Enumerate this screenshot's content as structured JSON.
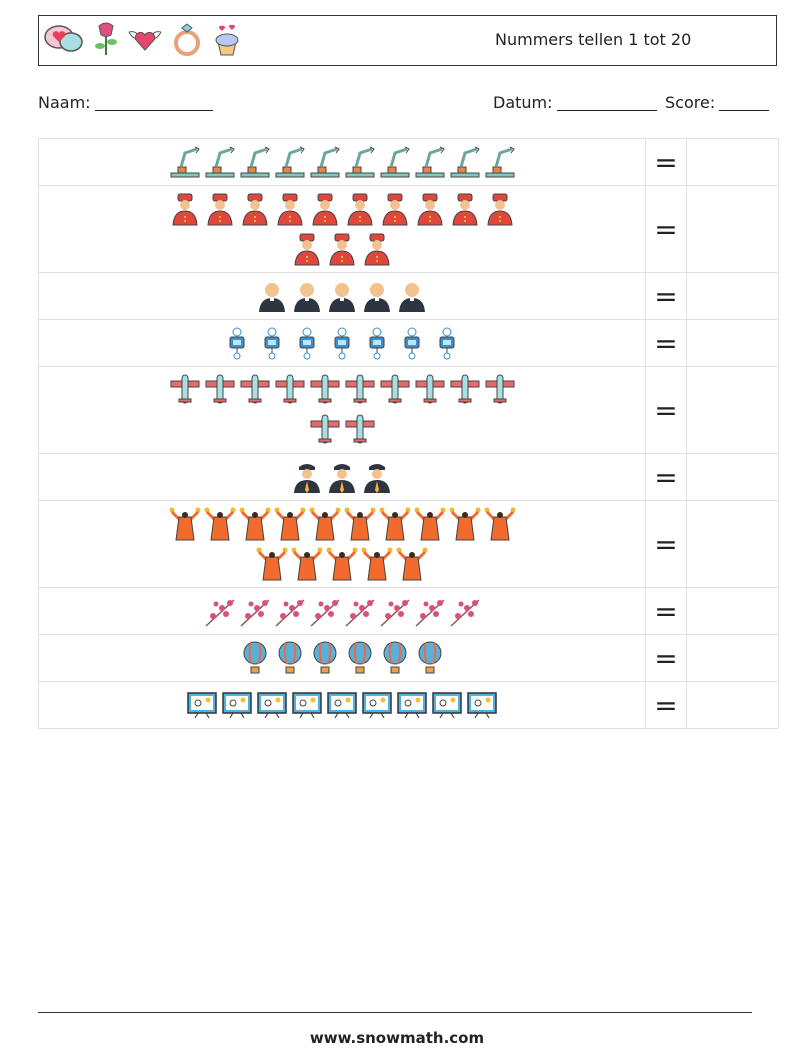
{
  "header": {
    "title": "Nummers tellen 1 tot 20",
    "icons": [
      "speech-hearts-icon",
      "rose-icon",
      "winged-heart-icon",
      "ring-icon",
      "cupcake-icon"
    ]
  },
  "meta": {
    "name_label": "Naam:",
    "date_label": "Datum:",
    "score_label": "Score:"
  },
  "rows": [
    {
      "icon": "robot-arm-icon",
      "count": 10,
      "color": "#6aa6a0"
    },
    {
      "icon": "bellhop-icon",
      "count": 13,
      "color": "#e0473c"
    },
    {
      "icon": "priest-icon",
      "count": 5,
      "color": "#2e3440"
    },
    {
      "icon": "robot-icon",
      "count": 7,
      "color": "#3a8fd0"
    },
    {
      "icon": "airplane-icon",
      "count": 12,
      "color": "#e86b6b"
    },
    {
      "icon": "pilot-icon",
      "count": 3,
      "color": "#2e3440"
    },
    {
      "icon": "dancer-icon",
      "count": 15,
      "color": "#f26a2c"
    },
    {
      "icon": "cherry-blossom-icon",
      "count": 8,
      "color": "#d9507f"
    },
    {
      "icon": "hot-air-balloon-icon",
      "count": 6,
      "color": "#5ab0d6"
    },
    {
      "icon": "monitor-icon",
      "count": 9,
      "color": "#4cb3e8"
    }
  ],
  "equals": "=",
  "footer": "www.snowmath.com"
}
